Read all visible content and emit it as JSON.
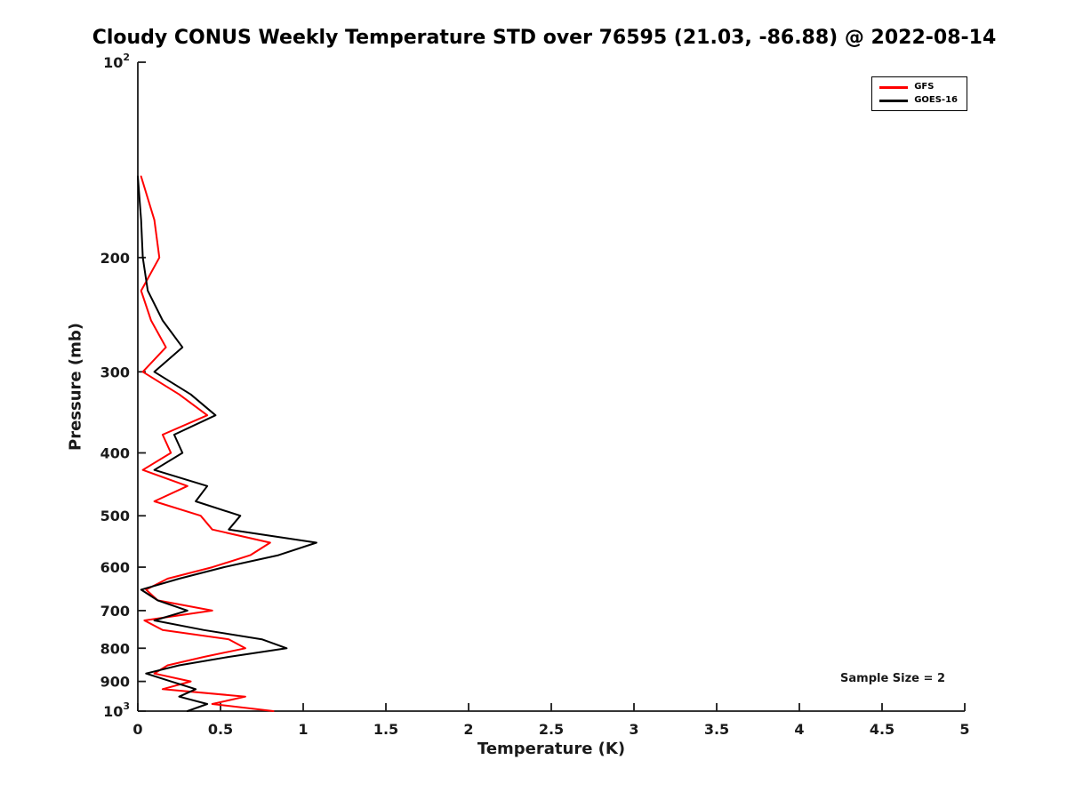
{
  "chart_data": {
    "type": "line",
    "title": "Cloudy CONUS Weekly Temperature STD over 76595 (21.03, -86.88) @ 2022-08-14",
    "xlabel": "Temperature (K)",
    "ylabel": "Pressure (mb)",
    "x_scale": "linear",
    "y_scale": "log",
    "y_axis_inverted": true,
    "xlim": [
      0,
      5
    ],
    "ylim_pressure_mb": [
      100,
      1000
    ],
    "x_ticks": [
      0,
      0.5,
      1,
      1.5,
      2,
      2.5,
      3,
      3.5,
      4,
      4.5,
      5
    ],
    "x_tick_labels": [
      "0",
      "0.5",
      "1",
      "1.5",
      "2",
      "2.5",
      "3",
      "3.5",
      "4",
      "4.5",
      "5"
    ],
    "y_ticks": [
      100,
      200,
      300,
      400,
      500,
      600,
      700,
      800,
      900,
      1000
    ],
    "y_tick_labels": [
      "10^2",
      "200",
      "300",
      "400",
      "500",
      "600",
      "700",
      "800",
      "900",
      "10^3"
    ],
    "grid": false,
    "legend_position": "top-right",
    "annotation": "Sample Size = 2",
    "pressure_levels_mb": [
      150,
      175,
      200,
      225,
      250,
      275,
      300,
      325,
      350,
      375,
      400,
      425,
      450,
      475,
      500,
      525,
      550,
      575,
      600,
      625,
      650,
      675,
      700,
      725,
      750,
      775,
      800,
      825,
      850,
      875,
      900,
      925,
      950,
      975,
      1000
    ],
    "series": [
      {
        "name": "GFS",
        "color": "#ff0000",
        "line_width": 2,
        "values": [
          0.02,
          0.1,
          0.13,
          0.02,
          0.08,
          0.17,
          0.03,
          0.25,
          0.42,
          0.15,
          0.2,
          0.03,
          0.3,
          0.1,
          0.38,
          0.45,
          0.8,
          0.68,
          0.45,
          0.18,
          0.05,
          0.12,
          0.45,
          0.04,
          0.15,
          0.55,
          0.65,
          0.4,
          0.18,
          0.1,
          0.32,
          0.15,
          0.65,
          0.45,
          0.82
        ]
      },
      {
        "name": "GOES-16",
        "color": "#000000",
        "line_width": 2,
        "values": [
          0.0,
          0.02,
          0.03,
          0.06,
          0.15,
          0.27,
          0.1,
          0.32,
          0.47,
          0.22,
          0.27,
          0.1,
          0.42,
          0.35,
          0.62,
          0.55,
          1.08,
          0.85,
          0.52,
          0.25,
          0.02,
          0.12,
          0.3,
          0.1,
          0.4,
          0.75,
          0.9,
          0.55,
          0.25,
          0.05,
          0.2,
          0.35,
          0.25,
          0.42,
          0.3
        ]
      }
    ]
  }
}
